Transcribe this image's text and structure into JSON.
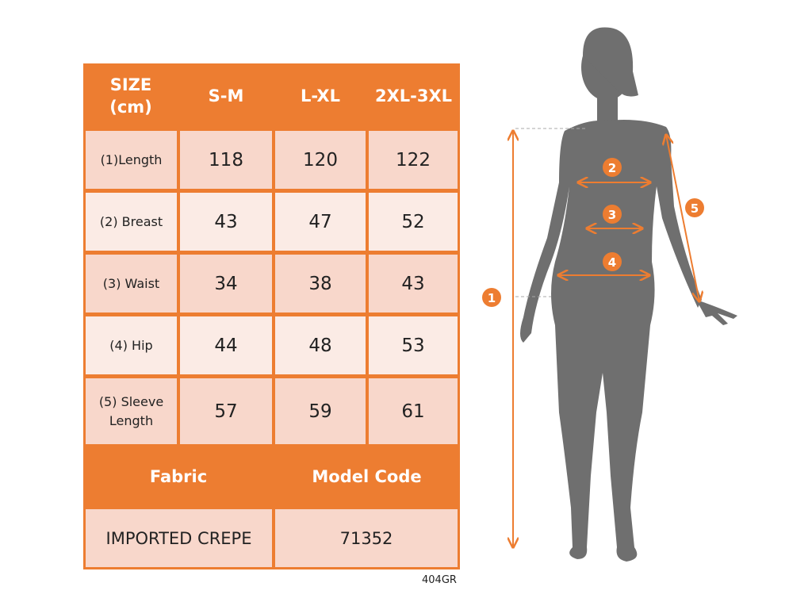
{
  "table": {
    "header": [
      "SIZE\n(cm)",
      "S-M",
      "L-XL",
      "2XL-3XL"
    ],
    "header_size_line1": "SIZE",
    "header_size_line2": "(cm)",
    "rows": [
      {
        "label": "(1)Length",
        "values": [
          "118",
          "120",
          "122"
        ]
      },
      {
        "label": "(2) Breast",
        "values": [
          "43",
          "47",
          "52"
        ]
      },
      {
        "label": "(3) Waist",
        "values": [
          "34",
          "38",
          "43"
        ]
      },
      {
        "label": "(4) Hip",
        "values": [
          "44",
          "48",
          "53"
        ]
      },
      {
        "label_line1": "(5) Sleeve",
        "label_line2": "Length",
        "values": [
          "57",
          "59",
          "61"
        ]
      }
    ],
    "footer_headers": [
      "Fabric",
      "Model Code"
    ],
    "footer_values": [
      "IMPORTED CREPE",
      "71352"
    ]
  },
  "product_code": "404GR",
  "figure": {
    "markers": [
      "1",
      "2",
      "3",
      "4",
      "5"
    ]
  },
  "colors": {
    "accent": "#ED7D31",
    "row_dark": "#F8D7CB",
    "row_light": "#FBEBE5",
    "silhouette": "#6F6F6F"
  }
}
